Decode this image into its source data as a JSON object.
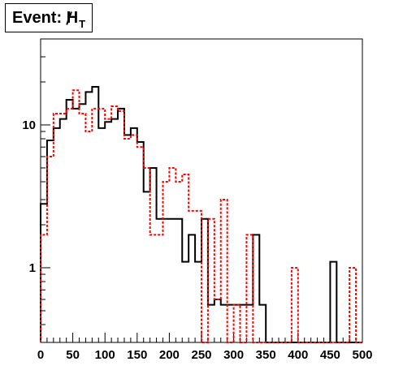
{
  "chart_data": {
    "type": "histogram",
    "title": {
      "prefix": "Event: ",
      "symbol": "H",
      "subscript": "T"
    },
    "xlabel": "",
    "ylabel": "",
    "xlim": [
      0,
      500
    ],
    "ylim": [
      0.3,
      40
    ],
    "y_scale": "log",
    "grid": false,
    "x_ticks": [
      0,
      50,
      100,
      150,
      200,
      250,
      300,
      350,
      400,
      450,
      500
    ],
    "y_ticks": [
      {
        "value": 1,
        "label": "1"
      },
      {
        "value": 10,
        "label": "10"
      }
    ],
    "bin_edges": [
      0,
      10,
      20,
      30,
      40,
      50,
      60,
      70,
      80,
      90,
      100,
      110,
      120,
      130,
      140,
      150,
      160,
      170,
      180,
      190,
      200,
      210,
      220,
      230,
      240,
      250,
      260,
      270,
      280,
      290,
      300,
      310,
      320,
      330,
      340,
      350,
      360,
      370,
      380,
      390,
      400,
      410,
      420,
      430,
      440,
      450,
      460,
      470,
      480,
      490,
      500
    ],
    "series": [
      {
        "style": "solid",
        "color": "#000000",
        "values": [
          2.8,
          7.8,
          9.5,
          11.0,
          15.0,
          13.0,
          14.0,
          17.0,
          18.5,
          9.5,
          10.5,
          11.0,
          13.0,
          8.5,
          9.5,
          7.6,
          3.4,
          5.0,
          2.2,
          2.2,
          2.2,
          2.2,
          1.1,
          1.7,
          1.1,
          2.2,
          0.55,
          0.6,
          0.55,
          0.55,
          0.55,
          0.55,
          0.55,
          1.7,
          0.55,
          0,
          0,
          0,
          0,
          0,
          0,
          0,
          0,
          0,
          0,
          1.1,
          0,
          0,
          0,
          0
        ]
      },
      {
        "style": "dashed",
        "color": "#ff0000",
        "values": [
          1.7,
          6.0,
          12.0,
          12.0,
          13.0,
          17.5,
          12.0,
          9.0,
          13.0,
          13.0,
          11.0,
          13.5,
          12.5,
          8.0,
          8.5,
          7.0,
          5.0,
          1.7,
          1.7,
          4.0,
          5.0,
          4.0,
          4.5,
          2.5,
          2.5,
          0,
          2.2,
          0.6,
          3.0,
          0,
          0.55,
          0,
          1.7,
          0,
          0,
          0,
          0,
          0,
          0,
          1.0,
          0,
          0,
          0,
          0,
          0,
          0,
          0,
          0,
          1.0,
          0
        ]
      }
    ]
  }
}
